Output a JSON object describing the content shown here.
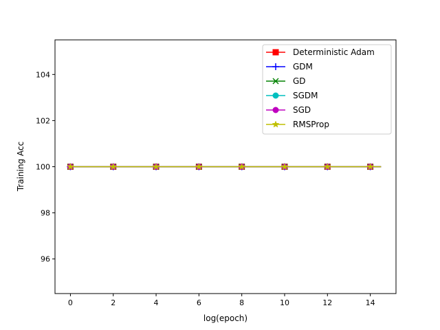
{
  "chart_data": {
    "type": "line",
    "xlabel": "log(epoch)",
    "ylabel": "Training Acc",
    "xlim": [
      -0.72,
      15.2
    ],
    "ylim": [
      94.5,
      105.5
    ],
    "xticks": [
      0,
      2,
      4,
      6,
      8,
      10,
      12,
      14
    ],
    "yticks": [
      96,
      98,
      100,
      102,
      104
    ],
    "grid": false,
    "legend_position": "top-right",
    "x": [
      0,
      0.5,
      1,
      1.5,
      2,
      2.5,
      3,
      3.5,
      4,
      4.5,
      5,
      5.5,
      6,
      6.5,
      7,
      7.5,
      8,
      8.5,
      9,
      9.5,
      10,
      10.5,
      11,
      11.5,
      12,
      12.5,
      13,
      13.5,
      14,
      14.5
    ],
    "marker_x": [
      0,
      2,
      4,
      6,
      8,
      10,
      12,
      14
    ],
    "series": [
      {
        "name": "Deterministic Adam",
        "color": "#ff0000",
        "marker": "square",
        "value": 100
      },
      {
        "name": "GDM",
        "color": "#0000ff",
        "marker": "plus",
        "value": 100
      },
      {
        "name": "GD",
        "color": "#008000",
        "marker": "x",
        "value": 100
      },
      {
        "name": "SGDM",
        "color": "#00bfbf",
        "marker": "circle",
        "value": 100
      },
      {
        "name": "SGD",
        "color": "#bf00bf",
        "marker": "circle",
        "value": 100
      },
      {
        "name": "RMSProp",
        "color": "#bfbf00",
        "marker": "star",
        "value": 100
      }
    ]
  }
}
